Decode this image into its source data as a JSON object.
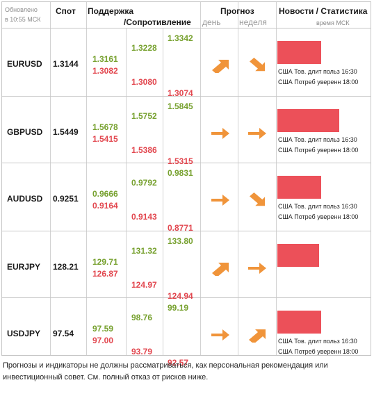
{
  "header": {
    "updated_line1": "Обновлено",
    "updated_line2": "в 10:55 МСК",
    "spot": "Спот",
    "support": "Поддержка",
    "resistance": "/Сопротивление",
    "forecast": "Прогноз",
    "day": "день",
    "week": "неделя",
    "news": "Новости / Статистика",
    "time": "время МСК"
  },
  "rows": [
    {
      "pair": "EURUSD",
      "spot": "1.3144",
      "s1": "1.3161",
      "s2": "1.3082",
      "r1": "1.3228",
      "r2": "1.3080",
      "r3": "1.3342",
      "r4": "1.3074",
      "day": "up",
      "week": "down",
      "news1": "США Тов. длит польз 16:30",
      "news2": "США Потреб уверенн 18:00"
    },
    {
      "pair": "GBPUSD",
      "spot": "1.5449",
      "s1": "1.5678",
      "s2": "1.5415",
      "r1": "1.5752",
      "r2": "1.5386",
      "r3": "1.5845",
      "r4": "1.5315",
      "day": "right",
      "week": "right",
      "news1": "США Тов. длит польз 16:30",
      "news2": "США Потреб уверенн 18:00"
    },
    {
      "pair": "AUDUSD",
      "spot": "0.9251",
      "s1": "0.9666",
      "s2": "0.9164",
      "r1": "0.9792",
      "r2": "0.9143",
      "r3": "0.9831",
      "r4": "0.8771",
      "day": "right",
      "week": "down",
      "news1": "США Тов. длит польз 16:30",
      "news2": "США Потреб уверенн 18:00"
    },
    {
      "pair": "EURJPY",
      "spot": "128.21",
      "s1": "129.71",
      "s2": "126.87",
      "r1": "131.32",
      "r2": "124.97",
      "r3": "133.80",
      "r4": "124.94",
      "day": "up",
      "week": "right",
      "news1": "",
      "news2": ""
    },
    {
      "pair": "USDJPY",
      "spot": "97.54",
      "s1": "97.59",
      "s2": "97.00",
      "r1": "98.76",
      "r2": "93.79",
      "r3": "99.19",
      "r4": "92.57",
      "day": "right",
      "week": "up",
      "news1": "США Тов. длит польз 16:30",
      "news2": "США Потреб уверенн 18:00"
    }
  ],
  "footer": {
    "line1": "Прогнозы и индикаторы не должны рассматриваться, как персональная рекомендация или",
    "line2": "инвестиционный совет. См. полный отказ от рисков ниже."
  },
  "colors": {
    "green": "#77a12f",
    "red": "#e2474f",
    "arrow": "#f0943a",
    "bar": "#ec5059"
  }
}
